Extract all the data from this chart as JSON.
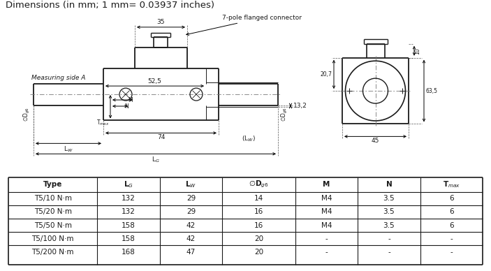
{
  "title": "Dimensions (in mm; 1 mm= 0.03937 inches)",
  "table_rows": [
    [
      "T5/10 N·m",
      "132",
      "29",
      "14",
      "M4",
      "3.5",
      "6"
    ],
    [
      "T5/20 N·m",
      "132",
      "29",
      "16",
      "M4",
      "3.5",
      "6"
    ],
    [
      "T5/50 N·m",
      "158",
      "42",
      "16",
      "M4",
      "3.5",
      "6"
    ],
    [
      "T5/100 N·m",
      "158",
      "42",
      "20",
      "-",
      "-",
      "-"
    ],
    [
      "T5/200 N·m",
      "168",
      "47",
      "20",
      "-",
      "-",
      "-"
    ]
  ],
  "bg_color": "#ffffff",
  "text_color": "#1a1a1a",
  "line_color": "#1a1a1a"
}
